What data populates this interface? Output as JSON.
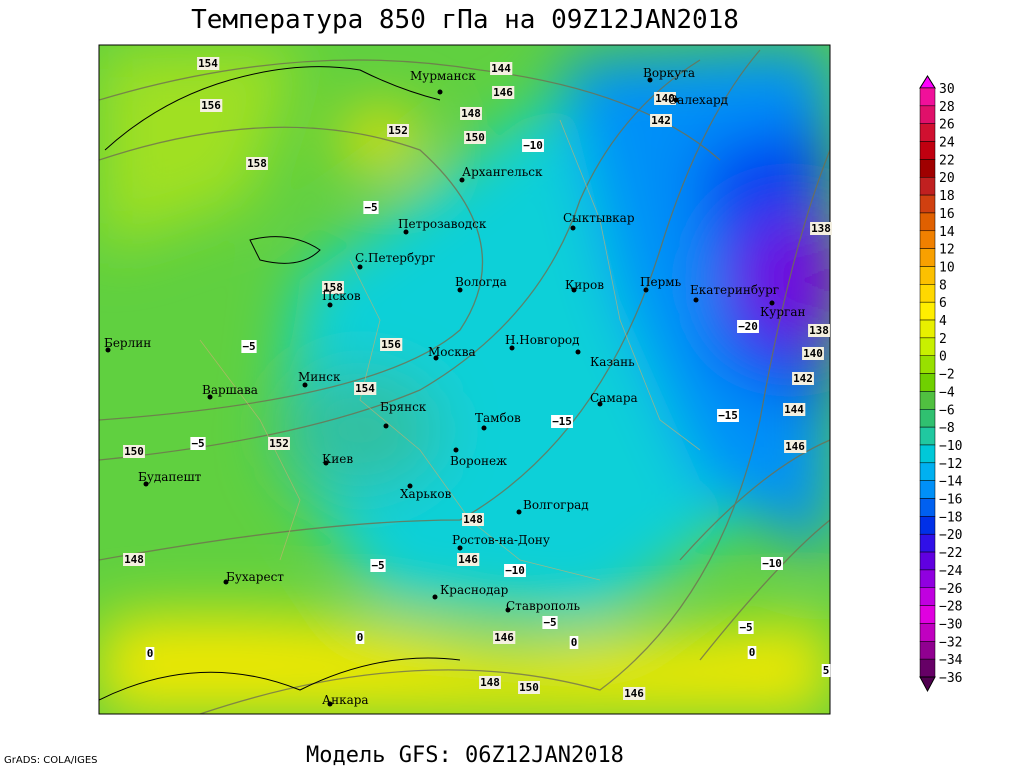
{
  "header": {
    "title": "Температура 850 гПа на 09Z12JAN2018"
  },
  "footer": {
    "model": "Модель GFS: 06Z12JAN2018",
    "credit": "GrADS: COLA/IGES"
  },
  "colorbar": {
    "labels": [
      "30",
      "28",
      "26",
      "24",
      "22",
      "20",
      "18",
      "16",
      "14",
      "12",
      "10",
      "8",
      "6",
      "4",
      "2",
      "0",
      "−2",
      "−4",
      "−6",
      "−8",
      "−10",
      "−12",
      "−14",
      "−16",
      "−18",
      "−20",
      "−22",
      "−24",
      "−26",
      "−28",
      "−30",
      "−32",
      "−34",
      "−36"
    ],
    "colors": [
      "#ff00ff",
      "#f0109a",
      "#e0106a",
      "#d01030",
      "#c00010",
      "#a00000",
      "#c02020",
      "#d04010",
      "#e06000",
      "#f08000",
      "#f8a000",
      "#fcc000",
      "#ffd800",
      "#ffee00",
      "#e8f000",
      "#c8f000",
      "#98e000",
      "#70d000",
      "#50c040",
      "#30c070",
      "#20c8a0",
      "#00c8d8",
      "#00b0f0",
      "#0090f8",
      "#0060f0",
      "#0030e8",
      "#3010e8",
      "#6000e0",
      "#9000e0",
      "#c000e0",
      "#e000e0",
      "#c000c0",
      "#900090",
      "#660066",
      "#500050"
    ]
  },
  "cities": [
    "Мурманск",
    "Архангельск",
    "Петрозаводск",
    "С.Петербург",
    "Псков",
    "Вологда",
    "Сыктывкар",
    "Киров",
    "Пермь",
    "Екатеринбург",
    "Курган",
    "Воркута",
    "Салехард",
    "Москва",
    "Н.Новгород",
    "Казань",
    "Минск",
    "Берлин",
    "Варшава",
    "Брянск",
    "Тамбов",
    "Самара",
    "Киев",
    "Воронеж",
    "Харьков",
    "Будапешт",
    "Волгоград",
    "Ростов-на-Дону",
    "Бухарест",
    "Краснодар",
    "Ставрополь",
    "Анкара"
  ],
  "height_labels": [
    "154",
    "156",
    "158",
    "152",
    "148",
    "150",
    "144",
    "146",
    "158",
    "156",
    "154",
    "152",
    "150",
    "148",
    "148",
    "146",
    "146",
    "148",
    "150",
    "146",
    "140",
    "142",
    "138",
    "138",
    "140",
    "142",
    "144",
    "146"
  ],
  "temperature_labels": [
    "−10",
    "−5",
    "−5",
    "−5",
    "−15",
    "−15",
    "−20",
    "−10",
    "−5",
    "−5",
    "0",
    "0",
    "−5",
    "0",
    "−10",
    "5",
    "0"
  ]
}
